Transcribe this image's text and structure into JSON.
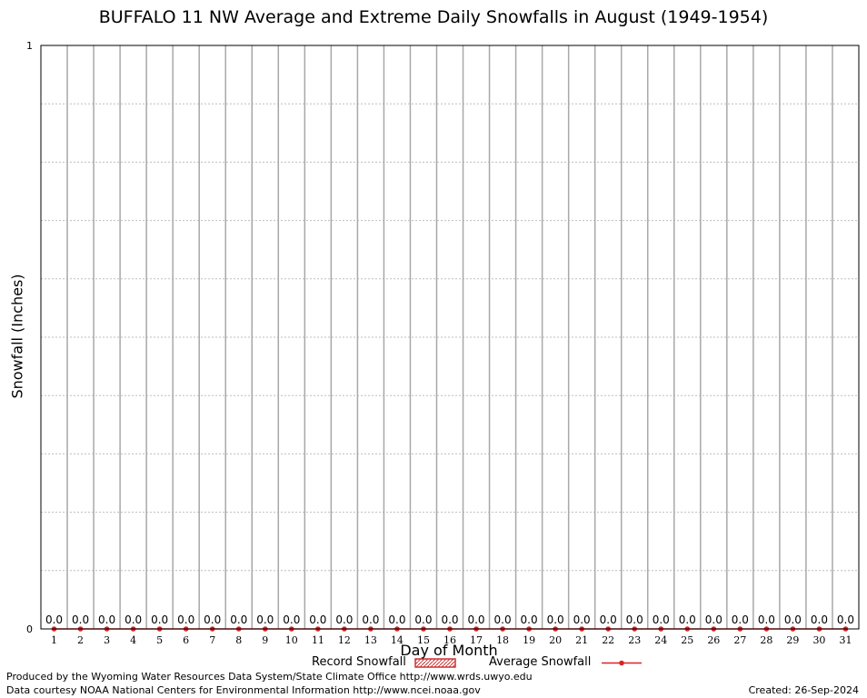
{
  "chart_data": {
    "type": "bar",
    "title": "BUFFALO 11 NW Average and Extreme Daily Snowfalls in August (1949-1954)",
    "xlabel": "Day of Month",
    "ylabel": "Snowfall (Inches)",
    "ylim": [
      0,
      1
    ],
    "y_ticks": [
      "0",
      "1"
    ],
    "grid": true,
    "legend_placement": "bottom",
    "categories": [
      "1",
      "2",
      "3",
      "4",
      "5",
      "6",
      "7",
      "8",
      "9",
      "10",
      "11",
      "12",
      "13",
      "14",
      "15",
      "16",
      "17",
      "18",
      "19",
      "20",
      "21",
      "22",
      "23",
      "24",
      "25",
      "26",
      "27",
      "28",
      "29",
      "30",
      "31"
    ],
    "series": [
      {
        "name": "Record Snowfall",
        "type": "bar",
        "color": "#cc3333",
        "values": [
          0,
          0,
          0,
          0,
          0,
          0,
          0,
          0,
          0,
          0,
          0,
          0,
          0,
          0,
          0,
          0,
          0,
          0,
          0,
          0,
          0,
          0,
          0,
          0,
          0,
          0,
          0,
          0,
          0,
          0,
          0
        ]
      },
      {
        "name": "Average Snowfall",
        "type": "line",
        "color": "#dd2222",
        "values": [
          0,
          0,
          0,
          0,
          0,
          0,
          0,
          0,
          0,
          0,
          0,
          0,
          0,
          0,
          0,
          0,
          0,
          0,
          0,
          0,
          0,
          0,
          0,
          0,
          0,
          0,
          0,
          0,
          0,
          0,
          0
        ]
      }
    ],
    "data_labels": [
      "0.0",
      "0.0",
      "0.0",
      "0.0",
      "0.0",
      "0.0",
      "0.0",
      "0.0",
      "0.0",
      "0.0",
      "0.0",
      "0.0",
      "0.0",
      "0.0",
      "0.0",
      "0.0",
      "0.0",
      "0.0",
      "0.0",
      "0.0",
      "0.0",
      "0.0",
      "0.0",
      "0.0",
      "0.0",
      "0.0",
      "0.0",
      "0.0",
      "0.0",
      "0.0",
      "0.0"
    ]
  },
  "legend": {
    "record_label": "Record Snowfall",
    "average_label": "Average Snowfall"
  },
  "footer": {
    "produced_by": "Produced by the Wyoming Water Resources Data System/State Climate Office http://www.wrds.uwyo.edu",
    "data_courtesy": "Data courtesy NOAA National Centers for Environmental Information http://www.ncei.noaa.gov",
    "created": "Created:  26-Sep-2024"
  }
}
